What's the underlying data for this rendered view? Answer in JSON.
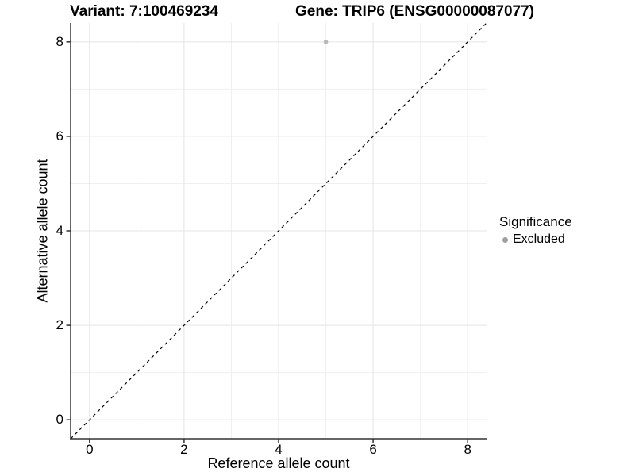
{
  "chart_data": {
    "type": "scatter",
    "title_variant": "Variant: 7:100469234",
    "title_gene": "Gene: TRIP6 (ENSG00000087077)",
    "xlabel": "Reference allele count",
    "ylabel": "Alternative allele count",
    "xlim": [
      -0.4,
      8.4
    ],
    "ylim": [
      -0.4,
      8.4
    ],
    "x_major_ticks": [
      0,
      2,
      4,
      6,
      8
    ],
    "x_minor_ticks": [
      1,
      3,
      5,
      7
    ],
    "y_major_ticks": [
      0,
      2,
      4,
      6,
      8
    ],
    "y_minor_ticks": [
      1,
      3,
      5,
      7
    ],
    "grid": "major+minor",
    "legend_position": "right",
    "reference_line": {
      "style": "dashed",
      "slope": 1,
      "intercept": 0,
      "color": "#000000",
      "dash": [
        4,
        4
      ]
    },
    "series": [
      {
        "name": "Excluded",
        "color": "#b8b8b8",
        "points": [
          {
            "x": 5,
            "y": 8
          }
        ]
      }
    ]
  },
  "legend": {
    "title": "Significance",
    "items": [
      {
        "label": "Excluded",
        "color": "#9f9f9f"
      }
    ]
  },
  "colors": {
    "background": "#ffffff",
    "axis_line": "#333333",
    "tick_mark": "#333333",
    "grid_major": "#e4e4e4",
    "grid_minor": "#f0f0f0",
    "text": "#000000"
  }
}
